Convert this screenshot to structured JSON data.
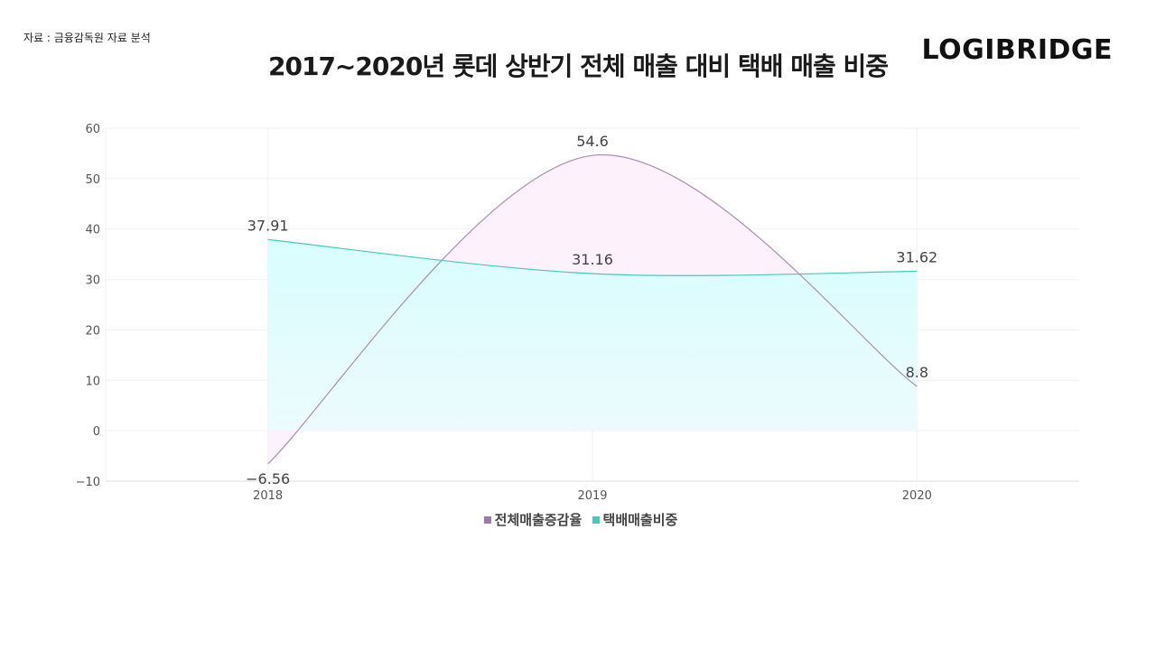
{
  "source": "자료 : 금융감독원 자료 분석",
  "logo": "LOGIBRIDGE",
  "chart_data": {
    "type": "area",
    "title": "2017~2020년 롯데 상반기 전체 매출 대비 택배 매출 비중",
    "categories": [
      "2018",
      "2019",
      "2020"
    ],
    "ylim": [
      -10,
      60
    ],
    "yticks": [
      "60",
      "50",
      "40",
      "30",
      "20",
      "10",
      "0",
      "−10"
    ],
    "grid": true,
    "legend_position": "bottom",
    "series": [
      {
        "name": "전체매출증감율",
        "values": [
          -6.56,
          54.6,
          8.8
        ],
        "labels": [
          "−6.56",
          "54.6",
          "8.8"
        ],
        "color": "#a07aa8",
        "fill": "#fdf2fb"
      },
      {
        "name": "택배매출비중",
        "values": [
          37.91,
          31.16,
          31.62
        ],
        "labels": [
          "37.91",
          "31.16",
          "31.62"
        ],
        "color": "#4fc4bb",
        "fill": "#d9fdfd"
      }
    ]
  }
}
